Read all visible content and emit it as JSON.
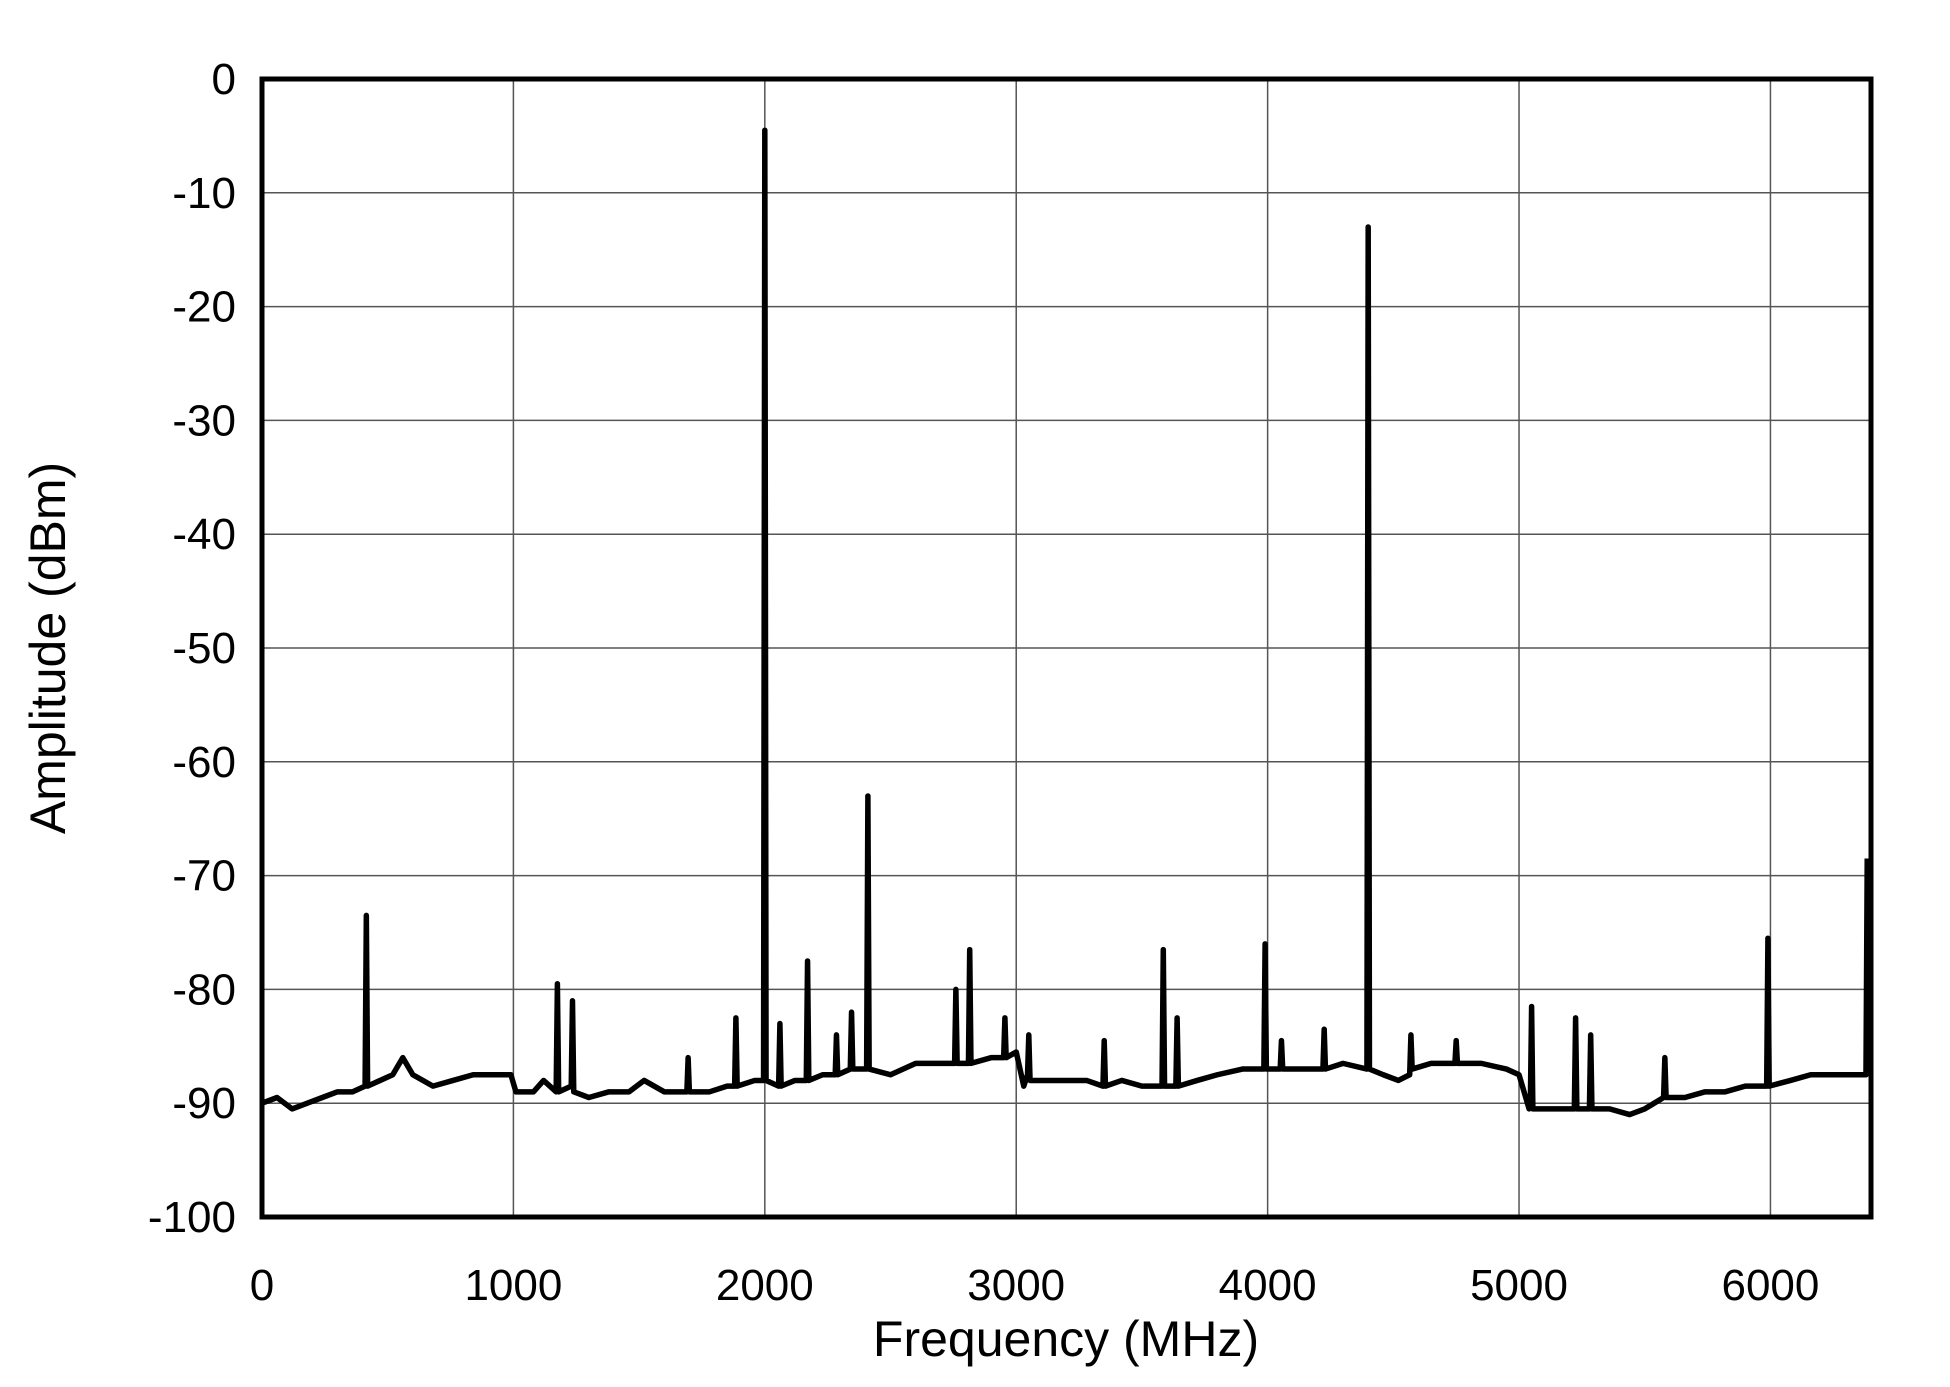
{
  "chart_data": {
    "type": "line",
    "xlabel": "Frequency (MHz)",
    "ylabel": "Amplitude (dBm)",
    "xlim": [
      0,
      6400
    ],
    "ylim": [
      -100,
      0
    ],
    "xticks": [
      0,
      1000,
      2000,
      3000,
      4000,
      5000,
      6000
    ],
    "yticks": [
      0,
      -10,
      -20,
      -30,
      -40,
      -50,
      -60,
      -70,
      -80,
      -90,
      -100
    ],
    "grid": true,
    "color": "#000000",
    "x": [
      0,
      60,
      120,
      180,
      240,
      300,
      360,
      410,
      415,
      420,
      470,
      520,
      560,
      600,
      680,
      760,
      840,
      920,
      990,
      1010,
      1080,
      1120,
      1170,
      1175,
      1180,
      1230,
      1235,
      1240,
      1300,
      1380,
      1460,
      1520,
      1600,
      1690,
      1695,
      1700,
      1780,
      1850,
      1880,
      1885,
      1890,
      1960,
      1995,
      2000,
      2005,
      2055,
      2060,
      2065,
      2120,
      2165,
      2170,
      2175,
      2230,
      2280,
      2285,
      2290,
      2340,
      2345,
      2350,
      2405,
      2410,
      2415,
      2500,
      2600,
      2680,
      2755,
      2760,
      2765,
      2810,
      2815,
      2820,
      2900,
      2950,
      2955,
      2960,
      3000,
      3030,
      3045,
      3050,
      3055,
      3120,
      3200,
      3280,
      3345,
      3350,
      3355,
      3420,
      3500,
      3580,
      3585,
      3590,
      3635,
      3640,
      3645,
      3720,
      3800,
      3900,
      3985,
      3990,
      3995,
      4050,
      4055,
      4060,
      4140,
      4220,
      4225,
      4230,
      4300,
      4395,
      4400,
      4405,
      4460,
      4520,
      4565,
      4570,
      4575,
      4650,
      4745,
      4750,
      4755,
      4850,
      4950,
      5000,
      5040,
      5045,
      5050,
      5055,
      5120,
      5180,
      5220,
      5225,
      5230,
      5280,
      5285,
      5290,
      5360,
      5440,
      5500,
      5575,
      5580,
      5585,
      5660,
      5740,
      5820,
      5900,
      5985,
      5990,
      5995,
      6080,
      6160,
      6240,
      6320,
      6380,
      6385
    ],
    "values": [
      -90,
      -89.5,
      -90.5,
      -90,
      -89.5,
      -89,
      -89,
      -88.5,
      -73.5,
      -88.5,
      -88,
      -87.5,
      -86,
      -87.5,
      -88.5,
      -88,
      -87.5,
      -87.5,
      -87.5,
      -89,
      -89,
      -88,
      -89,
      -79.5,
      -89,
      -88.5,
      -81,
      -89,
      -89.5,
      -89,
      -89,
      -88,
      -89,
      -89,
      -86,
      -89,
      -89,
      -88.5,
      -88.5,
      -82.5,
      -88.5,
      -88,
      -88,
      -4.5,
      -88,
      -88.5,
      -83,
      -88.5,
      -88,
      -88,
      -77.5,
      -88,
      -87.5,
      -87.5,
      -84,
      -87.5,
      -87,
      -82,
      -87,
      -87,
      -63,
      -87,
      -87.5,
      -86.5,
      -86.5,
      -86.5,
      -80,
      -86.5,
      -86.5,
      -76.5,
      -86.5,
      -86,
      -86,
      -82.5,
      -86,
      -85.5,
      -88.5,
      -87.5,
      -84,
      -88,
      -88,
      -88,
      -88,
      -88.5,
      -84.5,
      -88.5,
      -88,
      -88.5,
      -88.5,
      -76.5,
      -88.5,
      -88.5,
      -82.5,
      -88.5,
      -88,
      -87.5,
      -87,
      -87,
      -76,
      -87,
      -87,
      -84.5,
      -87,
      -87,
      -87,
      -83.5,
      -87,
      -86.5,
      -87,
      -13,
      -87,
      -87.5,
      -88,
      -87.5,
      -84,
      -87,
      -86.5,
      -86.5,
      -84.5,
      -86.5,
      -86.5,
      -87,
      -87.5,
      -90.5,
      -90,
      -81.5,
      -90.5,
      -90.5,
      -90.5,
      -90.5,
      -82.5,
      -90.5,
      -90.5,
      -84,
      -90.5,
      -90.5,
      -91,
      -90.5,
      -89.5,
      -86,
      -89.5,
      -89.5,
      -89,
      -89,
      -88.5,
      -88.5,
      -75.5,
      -88.5,
      -88,
      -87.5,
      -87.5,
      -87.5,
      -87.5,
      -68.5
    ]
  }
}
